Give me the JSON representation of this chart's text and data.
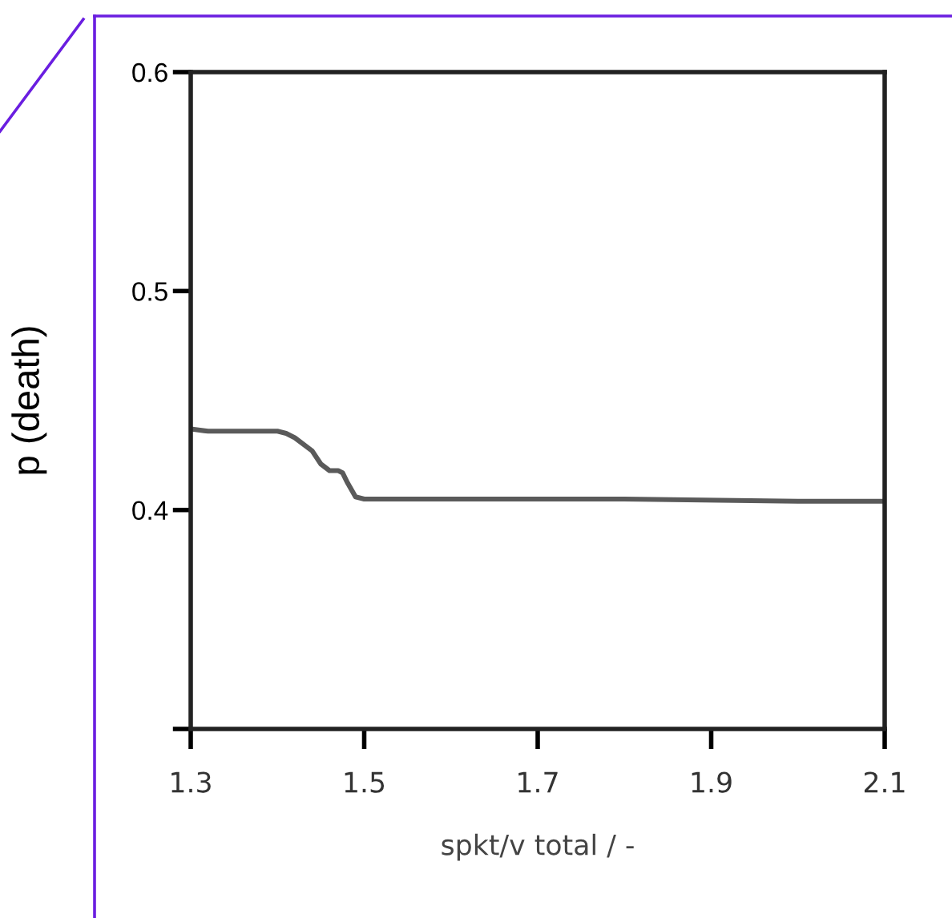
{
  "chart_data": {
    "type": "line",
    "xlabel": "spkt/v total / -",
    "ylabel": "p (death)",
    "x": [
      1.3,
      1.32,
      1.36,
      1.4,
      1.41,
      1.42,
      1.44,
      1.45,
      1.46,
      1.47,
      1.475,
      1.48,
      1.49,
      1.5,
      1.6,
      1.8,
      2.0,
      2.1
    ],
    "series": [
      {
        "color": "#5a5a5a",
        "values": [
          0.437,
          0.436,
          0.436,
          0.436,
          0.435,
          0.433,
          0.427,
          0.421,
          0.418,
          0.418,
          0.417,
          0.413,
          0.406,
          0.405,
          0.405,
          0.405,
          0.404,
          0.404
        ]
      }
    ],
    "xlim": [
      1.3,
      2.1
    ],
    "xticks": [
      1.3,
      1.5,
      1.7,
      1.9,
      2.1
    ],
    "ylim": [
      0.3,
      0.6
    ],
    "yticks": [
      {
        "value": 0.3,
        "label": null
      },
      0.4,
      0.5,
      0.6
    ],
    "marker": "none",
    "line_style": "solid"
  }
}
